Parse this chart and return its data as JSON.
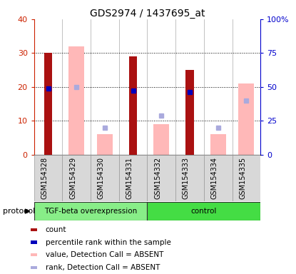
{
  "title": "GDS2974 / 1437695_at",
  "samples": [
    "GSM154328",
    "GSM154329",
    "GSM154330",
    "GSM154331",
    "GSM154332",
    "GSM154333",
    "GSM154334",
    "GSM154335"
  ],
  "red_bars": [
    30,
    null,
    null,
    29,
    null,
    25,
    null,
    null
  ],
  "pink_bars": [
    null,
    32,
    6,
    null,
    9,
    null,
    6,
    21
  ],
  "blue_squares": [
    19.5,
    null,
    null,
    19,
    null,
    18.5,
    null,
    null
  ],
  "lightblue_squares": [
    null,
    20,
    8,
    null,
    11.5,
    null,
    8,
    16
  ],
  "ylim_left": [
    0,
    40
  ],
  "ylim_right": [
    0,
    100
  ],
  "yticks_left": [
    0,
    10,
    20,
    30,
    40
  ],
  "ytick_labels_left": [
    "0",
    "10",
    "20",
    "30",
    "40"
  ],
  "yticks_right": [
    0,
    25,
    50,
    75,
    100
  ],
  "ytick_labels_right": [
    "0",
    "25",
    "50",
    "75",
    "100%"
  ],
  "left_axis_color": "#cc2200",
  "right_axis_color": "#0000cc",
  "red_color": "#aa1111",
  "pink_color": "#ffb8b8",
  "blue_color": "#0000bb",
  "lightblue_color": "#aaaadd",
  "group1_label": "TGF-beta overexpression",
  "group2_label": "control",
  "group1_color": "#88ee88",
  "group2_color": "#44dd44",
  "protocol_label": "protocol",
  "legend_items": [
    {
      "color": "#aa1111",
      "label": "count"
    },
    {
      "color": "#0000bb",
      "label": "percentile rank within the sample"
    },
    {
      "color": "#ffb8b8",
      "label": "value, Detection Call = ABSENT"
    },
    {
      "color": "#aaaadd",
      "label": "rank, Detection Call = ABSENT"
    }
  ],
  "title_fontsize": 10,
  "tick_fontsize": 8,
  "label_fontsize": 7,
  "legend_fontsize": 7.5
}
